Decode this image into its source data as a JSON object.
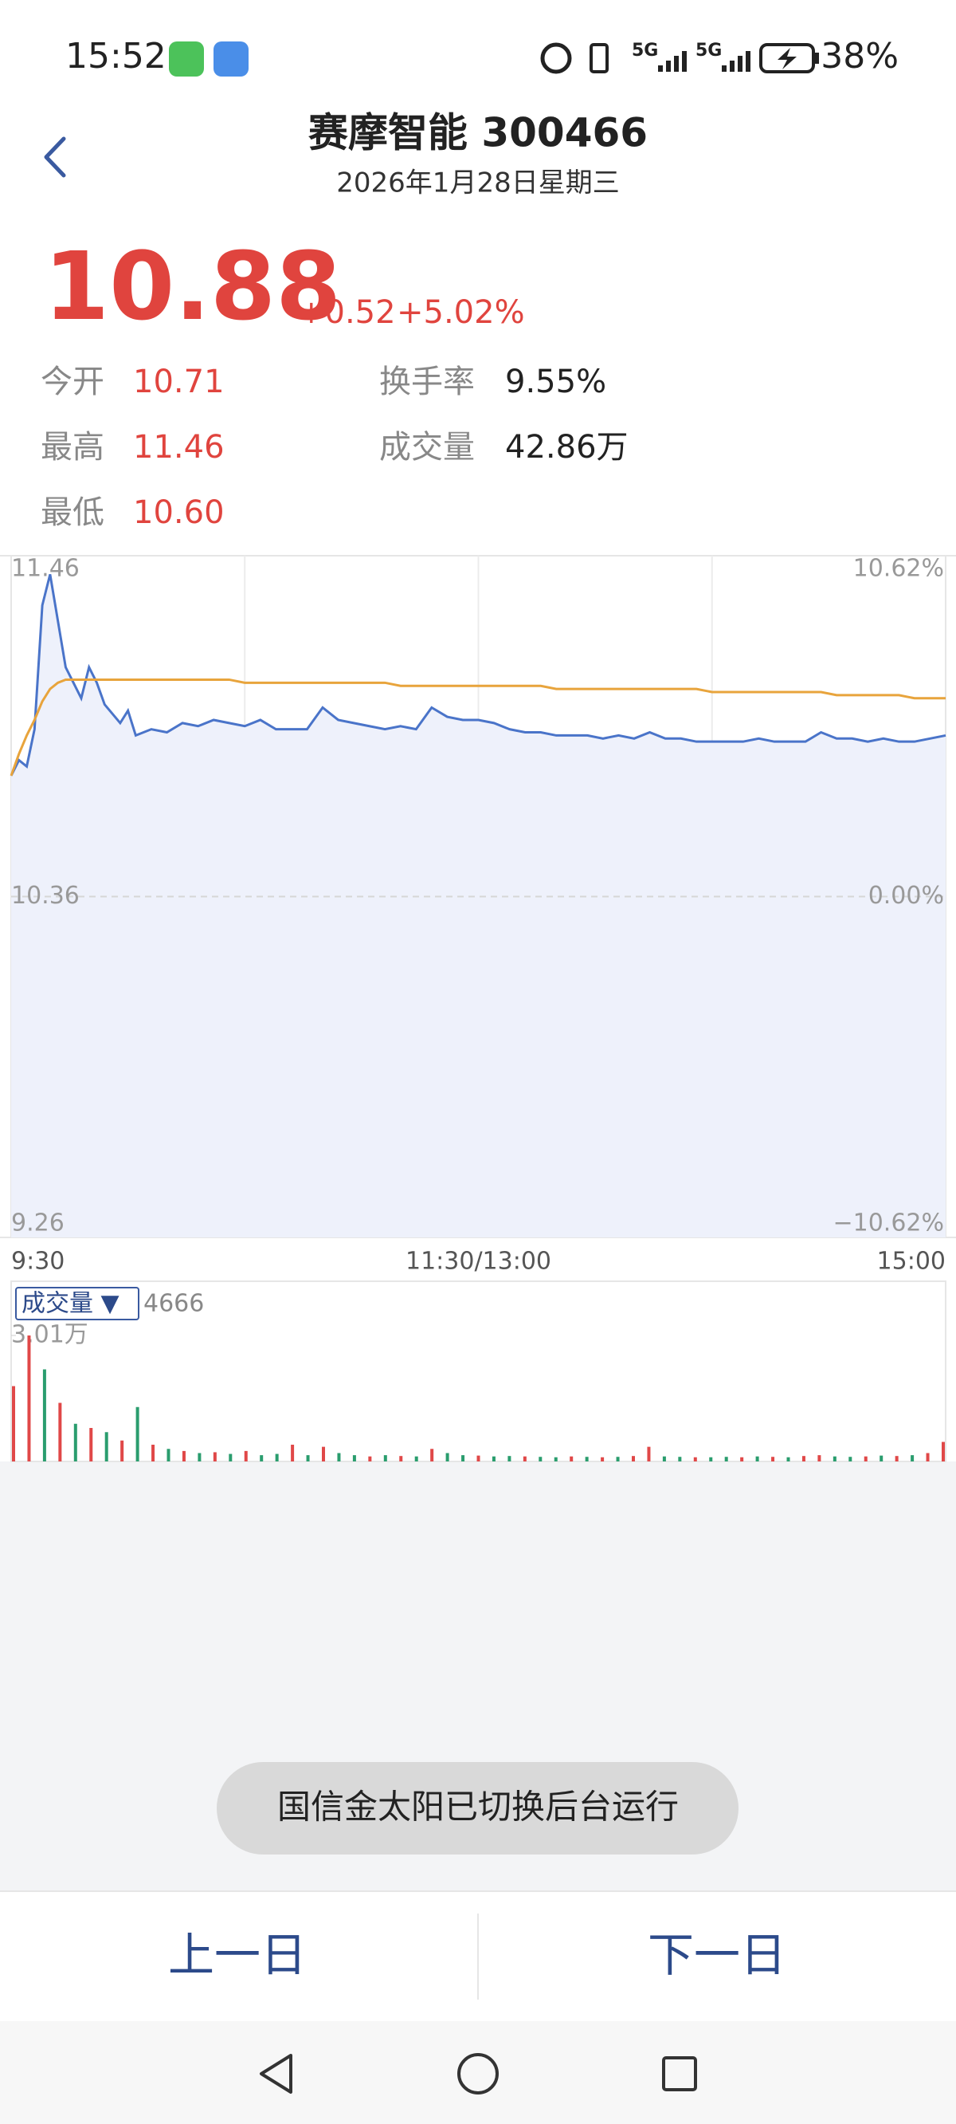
{
  "status_bar": {
    "time": "15:52",
    "signal_1": "5G",
    "signal_2": "5G",
    "battery": "38%"
  },
  "header": {
    "title": "赛摩智能 300466",
    "date": "2026年1月28日星期三"
  },
  "quote": {
    "price": "10.88",
    "change": "+0.52",
    "change_pct": "+5.02%",
    "stats": [
      {
        "label": "今开",
        "value": "10.71"
      },
      {
        "label": "换手率",
        "value": "9.55%"
      },
      {
        "label": "最高",
        "value": "11.46"
      },
      {
        "label": "成交量",
        "value": "42.86万"
      },
      {
        "label": "最低",
        "value": "10.60"
      }
    ]
  },
  "chart_data": [
    {
      "type": "line",
      "x": [
        0,
        2,
        4,
        6,
        8,
        10,
        12,
        14,
        16,
        18,
        20,
        22,
        24,
        26,
        28,
        30,
        32,
        36,
        40,
        44,
        48,
        52,
        56,
        60,
        64,
        68,
        72,
        76,
        80,
        84,
        88,
        92,
        96,
        100,
        104,
        108,
        112,
        116,
        120,
        124,
        128,
        132,
        136,
        140,
        144,
        148,
        152,
        156,
        160,
        164,
        168,
        172,
        176,
        180,
        184,
        188,
        192,
        196,
        200,
        204,
        208,
        212,
        216,
        220,
        224,
        228,
        232,
        236,
        240
      ],
      "xlim": [
        0,
        240
      ],
      "xticks": [
        {
          "value": 0,
          "label": "9:30"
        },
        {
          "value": 120,
          "label": "11:30/13:00"
        },
        {
          "value": 240,
          "label": "15:00"
        }
      ],
      "xgrid": [
        60,
        120,
        180
      ],
      "ylim": [
        9.26,
        11.46
      ],
      "yticks": [
        11.46,
        10.36,
        9.26
      ],
      "y2lim": [
        -10.62,
        10.62
      ],
      "y2ticks": [
        {
          "value": 10.62,
          "label": "10.62%"
        },
        {
          "value": 0,
          "label": "0.00%"
        },
        {
          "value": -10.62,
          "label": "−10.62%"
        }
      ],
      "fill": "#eef1fb",
      "series": [
        {
          "color": "#4a74c9",
          "values": [
            10.75,
            10.8,
            10.78,
            10.9,
            11.3,
            11.4,
            11.25,
            11.1,
            11.05,
            11.0,
            11.1,
            11.05,
            10.98,
            10.95,
            10.92,
            10.96,
            10.88,
            10.9,
            10.89,
            10.92,
            10.91,
            10.93,
            10.92,
            10.91,
            10.93,
            10.9,
            10.9,
            10.9,
            10.97,
            10.93,
            10.92,
            10.91,
            10.9,
            10.91,
            10.9,
            10.97,
            10.94,
            10.93,
            10.93,
            10.92,
            10.9,
            10.89,
            10.89,
            10.88,
            10.88,
            10.88,
            10.87,
            10.88,
            10.87,
            10.89,
            10.87,
            10.87,
            10.86,
            10.86,
            10.86,
            10.86,
            10.87,
            10.86,
            10.86,
            10.86,
            10.89,
            10.87,
            10.87,
            10.86,
            10.87,
            10.86,
            10.86,
            10.87,
            10.88
          ]
        },
        {
          "color": "#e8a43c",
          "values": [
            10.75,
            10.82,
            10.88,
            10.93,
            10.99,
            11.03,
            11.05,
            11.06,
            11.06,
            11.06,
            11.06,
            11.06,
            11.06,
            11.06,
            11.06,
            11.06,
            11.06,
            11.06,
            11.06,
            11.06,
            11.06,
            11.06,
            11.06,
            11.05,
            11.05,
            11.05,
            11.05,
            11.05,
            11.05,
            11.05,
            11.05,
            11.05,
            11.05,
            11.04,
            11.04,
            11.04,
            11.04,
            11.04,
            11.04,
            11.04,
            11.04,
            11.04,
            11.04,
            11.03,
            11.03,
            11.03,
            11.03,
            11.03,
            11.03,
            11.03,
            11.03,
            11.03,
            11.03,
            11.02,
            11.02,
            11.02,
            11.02,
            11.02,
            11.02,
            11.02,
            11.02,
            11.01,
            11.01,
            11.01,
            11.01,
            11.01,
            11.0,
            11.0,
            11.0
          ]
        }
      ]
    },
    {
      "type": "bar",
      "indicator": "成交量 ▼",
      "x": [
        0,
        4,
        8,
        12,
        16,
        20,
        24,
        28,
        32,
        36,
        40,
        44,
        48,
        52,
        56,
        60,
        64,
        68,
        72,
        76,
        80,
        84,
        88,
        92,
        96,
        100,
        104,
        108,
        112,
        116,
        120,
        124,
        128,
        132,
        136,
        140,
        144,
        148,
        152,
        156,
        160,
        164,
        168,
        172,
        176,
        180,
        184,
        188,
        192,
        196,
        200,
        204,
        208,
        212,
        216,
        220,
        224,
        228,
        232,
        236,
        240
      ],
      "xlim": [
        0,
        240
      ],
      "values": [
        18000,
        30100,
        22000,
        14000,
        9000,
        8000,
        7000,
        5000,
        13000,
        4000,
        3000,
        2500,
        2000,
        2200,
        1800,
        2500,
        1500,
        1800,
        4000,
        1500,
        3500,
        2000,
        1500,
        1200,
        1500,
        1300,
        1200,
        3000,
        2000,
        1500,
        1400,
        1200,
        1300,
        1200,
        1100,
        1000,
        1200,
        1100,
        1000,
        1100,
        1300,
        3500,
        1200,
        1100,
        1000,
        1000,
        1100,
        1000,
        1200,
        1100,
        1000,
        1300,
        1500,
        1200,
        1100,
        1200,
        1400,
        1300,
        1500,
        2000,
        4666
      ],
      "colors": [
        "#e04848",
        "#e04848",
        "#2a9d6e",
        "#e04848",
        "#2a9d6e",
        "#e04848",
        "#2a9d6e",
        "#e04848",
        "#2a9d6e",
        "#e04848",
        "#2a9d6e",
        "#e04848",
        "#2a9d6e",
        "#e04848",
        "#2a9d6e",
        "#e04848",
        "#2a9d6e",
        "#2a9d6e",
        "#e04848",
        "#2a9d6e",
        "#e04848",
        "#2a9d6e",
        "#2a9d6e",
        "#e04848",
        "#2a9d6e",
        "#e04848",
        "#2a9d6e",
        "#e04848",
        "#2a9d6e",
        "#2a9d6e",
        "#e04848",
        "#2a9d6e",
        "#2a9d6e",
        "#e04848",
        "#2a9d6e",
        "#2a9d6e",
        "#e04848",
        "#2a9d6e",
        "#e04848",
        "#2a9d6e",
        "#e04848",
        "#e04848",
        "#2a9d6e",
        "#2a9d6e",
        "#e04848",
        "#2a9d6e",
        "#2a9d6e",
        "#e04848",
        "#2a9d6e",
        "#e04848",
        "#2a9d6e",
        "#e04848",
        "#e04848",
        "#2a9d6e",
        "#2a9d6e",
        "#e04848",
        "#2a9d6e",
        "#e04848",
        "#2a9d6e",
        "#e04848",
        "#e04848"
      ],
      "ylim": [
        0,
        30100
      ],
      "yticks": [
        {
          "value": 30100,
          "label": "3.01万"
        }
      ]
    }
  ],
  "toast": "国信金太阳已切换后台运行",
  "buttons": {
    "prev": "上一日",
    "next": "下一日"
  }
}
